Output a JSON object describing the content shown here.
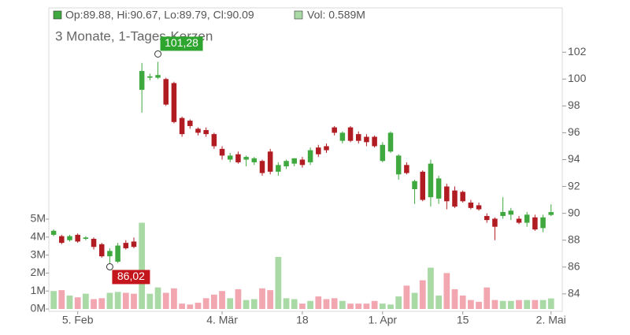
{
  "chart_data": {
    "type": "candlestick",
    "ohlc_legend": "Op:89.88, Hi:90.67, Lo:89.79, Cl:90.09",
    "volume_legend": "Vol: 0.589M",
    "subtitle": "3 Monate, 1-Tages-Kerzen",
    "high_label": "101,28",
    "low_label": "86,02",
    "up_color": "#3fa83f",
    "down_color": "#b01c22",
    "volume_up_color": "#a9d9a4",
    "volume_down_color": "#f2a6b0",
    "categories": [
      null,
      null,
      null,
      "5. Feb",
      null,
      null,
      null,
      null,
      null,
      null,
      null,
      null,
      null,
      null,
      null,
      null,
      null,
      null,
      null,
      null,
      null,
      "4. Mär",
      null,
      null,
      null,
      null,
      null,
      null,
      null,
      null,
      null,
      "18",
      null,
      null,
      null,
      null,
      null,
      null,
      null,
      null,
      null,
      "1. Apr",
      null,
      null,
      null,
      null,
      null,
      null,
      null,
      null,
      null,
      "15",
      null,
      null,
      null,
      null,
      null,
      null,
      null,
      null,
      null,
      null,
      "2. Mai"
    ],
    "open": [
      88.4,
      88.3,
      88.0,
      88.4,
      88.1,
      88.1,
      87.7,
      86.8,
      86.4,
      87.8,
      87.9,
      99.2,
      100.1,
      100.1,
      100.0,
      99.7,
      97.1,
      96.9,
      96.3,
      96.2,
      95.9,
      94.8,
      94.0,
      94.4,
      94.0,
      93.8,
      93.9,
      94.6,
      93.1,
      93.5,
      93.7,
      94.0,
      93.8,
      94.9,
      95.0,
      96.4,
      95.4,
      96.4,
      95.9,
      95.7,
      95.7,
      93.9,
      94.6,
      92.9,
      93.6,
      91.8,
      93.1,
      91.2,
      91.1,
      92.0,
      91.7,
      91.6,
      90.8,
      90.6,
      89.8,
      89.6,
      89.8,
      89.9,
      89.6,
      89.3,
      89.7,
      88.9,
      89.88
    ],
    "high": [
      88.8,
      88.4,
      88.4,
      88.5,
      88.3,
      88.2,
      87.8,
      87.4,
      87.8,
      88.0,
      88.2,
      101.2,
      100.4,
      101.28,
      100.1,
      99.8,
      97.2,
      97.0,
      96.4,
      96.4,
      96.0,
      95.0,
      94.5,
      94.6,
      94.3,
      94.2,
      94.0,
      94.8,
      93.8,
      94.0,
      94.1,
      94.2,
      94.9,
      95.1,
      95.2,
      96.5,
      96.1,
      96.5,
      96.1,
      95.9,
      95.8,
      95.3,
      96.1,
      94.4,
      93.8,
      92.5,
      93.2,
      94.0,
      92.8,
      92.2,
      92.0,
      91.7,
      91.0,
      90.8,
      90.0,
      89.7,
      91.2,
      90.4,
      89.8,
      90.1,
      89.9,
      89.9,
      90.67
    ],
    "low": [
      88.3,
      87.7,
      87.9,
      87.8,
      88.0,
      87.3,
      86.7,
      86.02,
      86.3,
      87.3,
      87.4,
      97.5,
      99.9,
      100.0,
      98.0,
      96.7,
      95.7,
      96.3,
      95.8,
      95.7,
      94.8,
      94.0,
      93.8,
      93.7,
      93.5,
      93.6,
      92.8,
      92.9,
      92.8,
      93.3,
      93.5,
      93.4,
      93.6,
      94.2,
      94.5,
      95.8,
      95.2,
      95.3,
      95.2,
      95.0,
      94.9,
      93.8,
      94.5,
      92.5,
      92.9,
      90.7,
      90.9,
      90.5,
      90.7,
      90.3,
      90.4,
      90.8,
      90.3,
      90.2,
      89.3,
      88.0,
      89.6,
      89.5,
      89.2,
      89.0,
      88.7,
      88.6,
      89.79
    ],
    "close": [
      88.7,
      87.8,
      88.3,
      87.9,
      88.2,
      87.5,
      86.8,
      87.2,
      87.6,
      87.4,
      87.5,
      100.6,
      100.2,
      100.3,
      98.1,
      96.8,
      95.9,
      96.5,
      96.0,
      95.9,
      95.0,
      94.3,
      94.3,
      93.8,
      94.2,
      94.1,
      93.0,
      93.1,
      93.6,
      93.9,
      94.1,
      93.6,
      94.7,
      94.4,
      94.7,
      96.0,
      96.0,
      95.4,
      95.4,
      95.3,
      95.0,
      95.1,
      96.0,
      94.3,
      93.0,
      92.4,
      91.0,
      93.7,
      92.6,
      90.9,
      90.5,
      90.9,
      90.4,
      90.3,
      89.5,
      89.0,
      90.1,
      90.2,
      89.3,
      89.9,
      88.8,
      89.7,
      90.09
    ],
    "volume": [
      1.0,
      1.05,
      0.75,
      0.65,
      0.85,
      0.55,
      0.6,
      0.9,
      0.95,
      0.9,
      0.85,
      4.8,
      0.85,
      1.2,
      0.9,
      1.15,
      0.3,
      0.25,
      0.35,
      0.6,
      0.8,
      1.0,
      0.6,
      1.1,
      0.5,
      0.55,
      1.15,
      1.05,
      2.9,
      0.6,
      0.55,
      0.3,
      0.45,
      0.7,
      0.55,
      0.6,
      0.45,
      0.3,
      0.3,
      0.3,
      0.45,
      0.3,
      0.25,
      0.7,
      1.3,
      0.9,
      1.6,
      2.3,
      0.75,
      2.0,
      1.1,
      0.75,
      0.5,
      0.4,
      1.2,
      0.5,
      0.45,
      0.45,
      0.5,
      0.5,
      0.5,
      0.5,
      0.589
    ],
    "ylim": [
      82.7,
      105.3
    ],
    "yticks": [
      84,
      86,
      88,
      90,
      92,
      94,
      96,
      98,
      100,
      102
    ],
    "y2lim": [
      -0.13,
      16.75
    ],
    "y2ticks": [
      {
        "value": 0,
        "label": "0M"
      },
      {
        "value": 1,
        "label": "1M"
      },
      {
        "value": 2,
        "label": "2M"
      },
      {
        "value": 3,
        "label": "3M"
      },
      {
        "value": 4,
        "label": "4M"
      },
      {
        "value": 5,
        "label": "5M"
      }
    ]
  }
}
